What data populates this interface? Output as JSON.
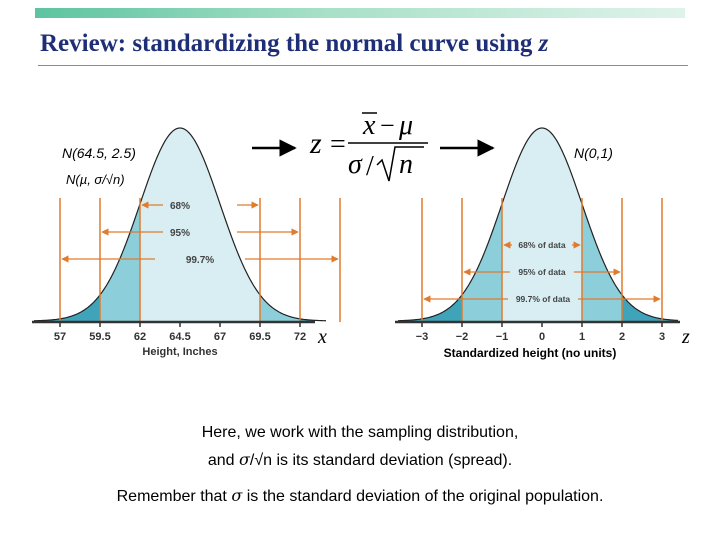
{
  "slide": {
    "title": "Review: standardizing the normal curve using",
    "title_var": "z"
  },
  "formula": {
    "lhs": "z",
    "eq": "=",
    "num_x": "x",
    "num_minus": "−",
    "num_mu": "μ",
    "den_sigma": "σ",
    "den_slash": "/",
    "den_n": "n"
  },
  "left_curve": {
    "dist_label": "N(64.5, 2.5)",
    "param_label": "N(µ, σ/√n)",
    "percent_labels": [
      "68%",
      "95%",
      "99.7%"
    ],
    "tick_labels": [
      "57",
      "59.5",
      "62",
      "64.5",
      "67",
      "69.5",
      "72"
    ],
    "axis_var": "x",
    "axis_title": "Height, Inches"
  },
  "right_curve": {
    "dist_label": "N(0,1)",
    "percent_labels": [
      "68% of data",
      "95% of data",
      "99.7% of data"
    ],
    "tick_labels": [
      "−3",
      "−2",
      "−1",
      "0",
      "1",
      "2",
      "3"
    ],
    "axis_var": "z",
    "axis_title": "Standardized height (no units)"
  },
  "captions": {
    "line1": "Here, we work with the sampling distribution,",
    "line2_pre": "and ",
    "line2_sigma": "σ",
    "line2_mid": "/√n",
    "line2_post": " is its standard deviation (spread).",
    "line3_pre": "Remember that ",
    "line3_sigma": "σ",
    "line3_post": " is the standard deviation of the original population."
  },
  "colors": {
    "title": "#1f2f77",
    "fill_outer": "#3fa4ba",
    "fill_mid": "#8ccfdb",
    "fill_inner": "#d8eef3",
    "interval_lines": "#e07b2c",
    "axis": "#333333"
  }
}
